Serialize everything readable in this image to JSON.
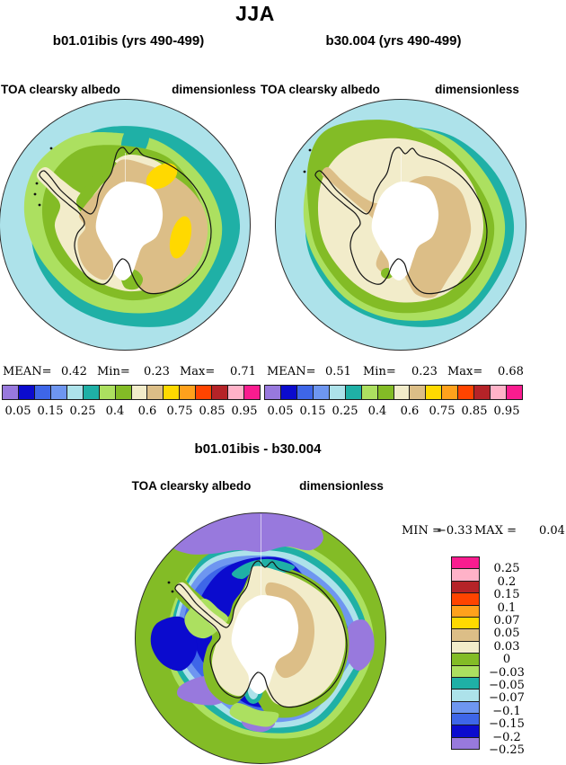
{
  "title": "JJA",
  "colorbar_colors": [
    "#9879DD",
    "#0B0BCE",
    "#3E66E8",
    "#6E96F0",
    "#ADE2EA",
    "#1FB0A6",
    "#ACE060",
    "#83BC26",
    "#F2ECCA",
    "#DCBE87",
    "#FFD900",
    "#FFA11C",
    "#FF4400",
    "#B52328",
    "#FFB2C8",
    "#F91C8F"
  ],
  "panels": [
    {
      "title": "b01.01ibis (yrs 490-499)",
      "field": "TOA clearsky albedo",
      "units": "dimensionless",
      "stats": {
        "mean_label": "MEAN=",
        "mean": "0.42",
        "min_label": "Min=",
        "min": "0.23",
        "max_label": "Max=",
        "max": "0.71"
      },
      "tick_labels": [
        "0.05",
        "0.15",
        "0.25",
        "0.4",
        "0.6",
        "0.75",
        "0.85",
        "0.95"
      ]
    },
    {
      "title": "b30.004 (yrs 490-499)",
      "field": "TOA clearsky albedo",
      "units": "dimensionless",
      "stats": {
        "mean_label": "MEAN=",
        "mean": "0.51",
        "min_label": "Min=",
        "min": "0.23",
        "max_label": "Max=",
        "max": "0.68"
      },
      "tick_labels": [
        "0.05",
        "0.15",
        "0.25",
        "0.4",
        "0.6",
        "0.75",
        "0.85",
        "0.95"
      ]
    }
  ],
  "diff": {
    "title": "b01.01ibis - b30.004",
    "field": "TOA clearsky albedo",
    "units": "dimensionless",
    "stats": {
      "min_label": "MIN =",
      "min": "−0.33",
      "max_label": "MAX =",
      "max": "0.04"
    },
    "colorbar_labels": [
      "0.25",
      "0.2",
      "0.15",
      "0.1",
      "0.07",
      "0.05",
      "0.03",
      "0",
      "−0.03",
      "−0.05",
      "−0.07",
      "−0.1",
      "−0.15",
      "−0.2",
      "−0.25"
    ]
  },
  "chart_data": [
    {
      "type": "heatmap",
      "subtype": "filled-contour polar stereographic map (Antarctica / Southern Ocean)",
      "season_title": "JJA",
      "title": "b01.01ibis (yrs 490-499)",
      "variable": "TOA clearsky albedo",
      "units": "dimensionless",
      "stats": {
        "mean": 0.42,
        "min": 0.23,
        "max": 0.71
      },
      "colorbar_tick_values": [
        0.05,
        0.15,
        0.25,
        0.4,
        0.6,
        0.75,
        0.85,
        0.95
      ],
      "palette": [
        "#9879DD",
        "#0B0BCE",
        "#3E66E8",
        "#6E96F0",
        "#ADE2EA",
        "#1FB0A6",
        "#ACE060",
        "#83BC26",
        "#F2ECCA",
        "#DCBE87",
        "#FFD900",
        "#FFA11C",
        "#FF4400",
        "#B52328",
        "#FFB2C8",
        "#F91C8F"
      ],
      "legend_position": "bottom",
      "pattern": "pale-cyan outer ocean ring (~0.25-0.3), wide teal ring (~0.3-0.4), light-green and green rings (~0.4-0.6) around coast, cream coastal band (~0.6-0.7), tan continental interior (~0.7-0.75), two yellow patches (~0.75-0.8) in East Antarctica, white polar hole"
    },
    {
      "type": "heatmap",
      "subtype": "filled-contour polar stereographic map (Antarctica / Southern Ocean)",
      "season_title": "JJA",
      "title": "b30.004 (yrs 490-499)",
      "variable": "TOA clearsky albedo",
      "units": "dimensionless",
      "stats": {
        "mean": 0.51,
        "min": 0.23,
        "max": 0.68
      },
      "colorbar_tick_values": [
        0.05,
        0.15,
        0.25,
        0.4,
        0.6,
        0.75,
        0.85,
        0.95
      ],
      "palette": [
        "#9879DD",
        "#0B0BCE",
        "#3E66E8",
        "#6E96F0",
        "#ADE2EA",
        "#1FB0A6",
        "#ACE060",
        "#83BC26",
        "#F2ECCA",
        "#DCBE87",
        "#FFD900",
        "#FFA11C",
        "#FF4400",
        "#B52328",
        "#FFB2C8",
        "#F91C8F"
      ],
      "legend_position": "bottom",
      "pattern": "thin pale-cyan rim, thin teal ring, green ring touching rim at upper-left, very wide cream area (~0.6-0.7) covering ocean and coast, tan continental interior, small green patch near Ross Sea, white polar hole"
    },
    {
      "type": "heatmap",
      "subtype": "filled-contour polar stereographic difference map (b01.01ibis minus b30.004)",
      "season_title": "JJA",
      "title": "b01.01ibis - b30.004",
      "variable": "TOA clearsky albedo",
      "units": "dimensionless",
      "stats": {
        "min": -0.33,
        "max": 0.04
      },
      "contour_levels": [
        0.25,
        0.2,
        0.15,
        0.1,
        0.07,
        0.05,
        0.03,
        0,
        -0.03,
        -0.05,
        -0.07,
        -0.1,
        -0.15,
        -0.2,
        -0.25
      ],
      "palette_top_to_bottom": [
        "#F91C8F",
        "#FFB2C8",
        "#B52328",
        "#FF4400",
        "#FFA11C",
        "#FFD900",
        "#DCBE87",
        "#F2ECCA",
        "#83BC26",
        "#ACE060",
        "#1FB0A6",
        "#ADE2EA",
        "#6E96F0",
        "#3E66E8",
        "#0B0BCE",
        "#9879DD"
      ],
      "legend_position": "right",
      "pattern": "green outer ring (0 to -0.03), broad negative blue ring over the sea-ice zone (-0.1 to -0.25) with purple blobs below -0.25 (large one at top, patches at right and lower-left), banded transition (cyan/teal/light-green) toward the coast, cream continent near 0 with tan streak (0.03-0.05) east of the pole, white polar hole"
    }
  ]
}
